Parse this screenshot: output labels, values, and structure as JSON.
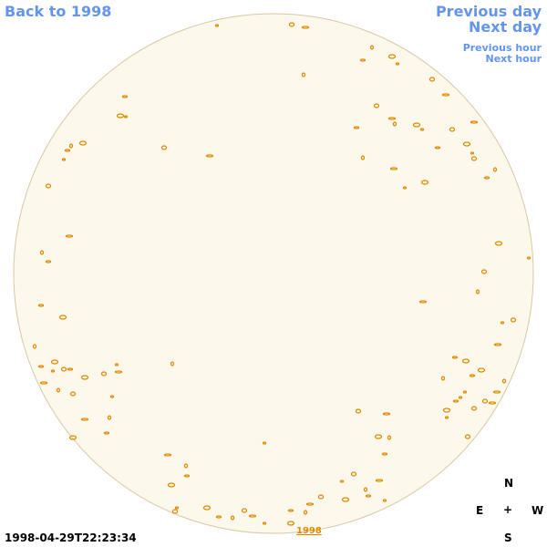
{
  "navigation": {
    "back": "Back to 1998",
    "previous_day": "Previous day",
    "next_day": "Next day",
    "previous_hour": "Previous hour",
    "next_hour": "Next hour",
    "year_link": "1998"
  },
  "timestamp": "1998-04-29T22:23:34",
  "compass": {
    "north": "N",
    "east": "E",
    "center": "+",
    "west": "W",
    "south": "S"
  }
}
